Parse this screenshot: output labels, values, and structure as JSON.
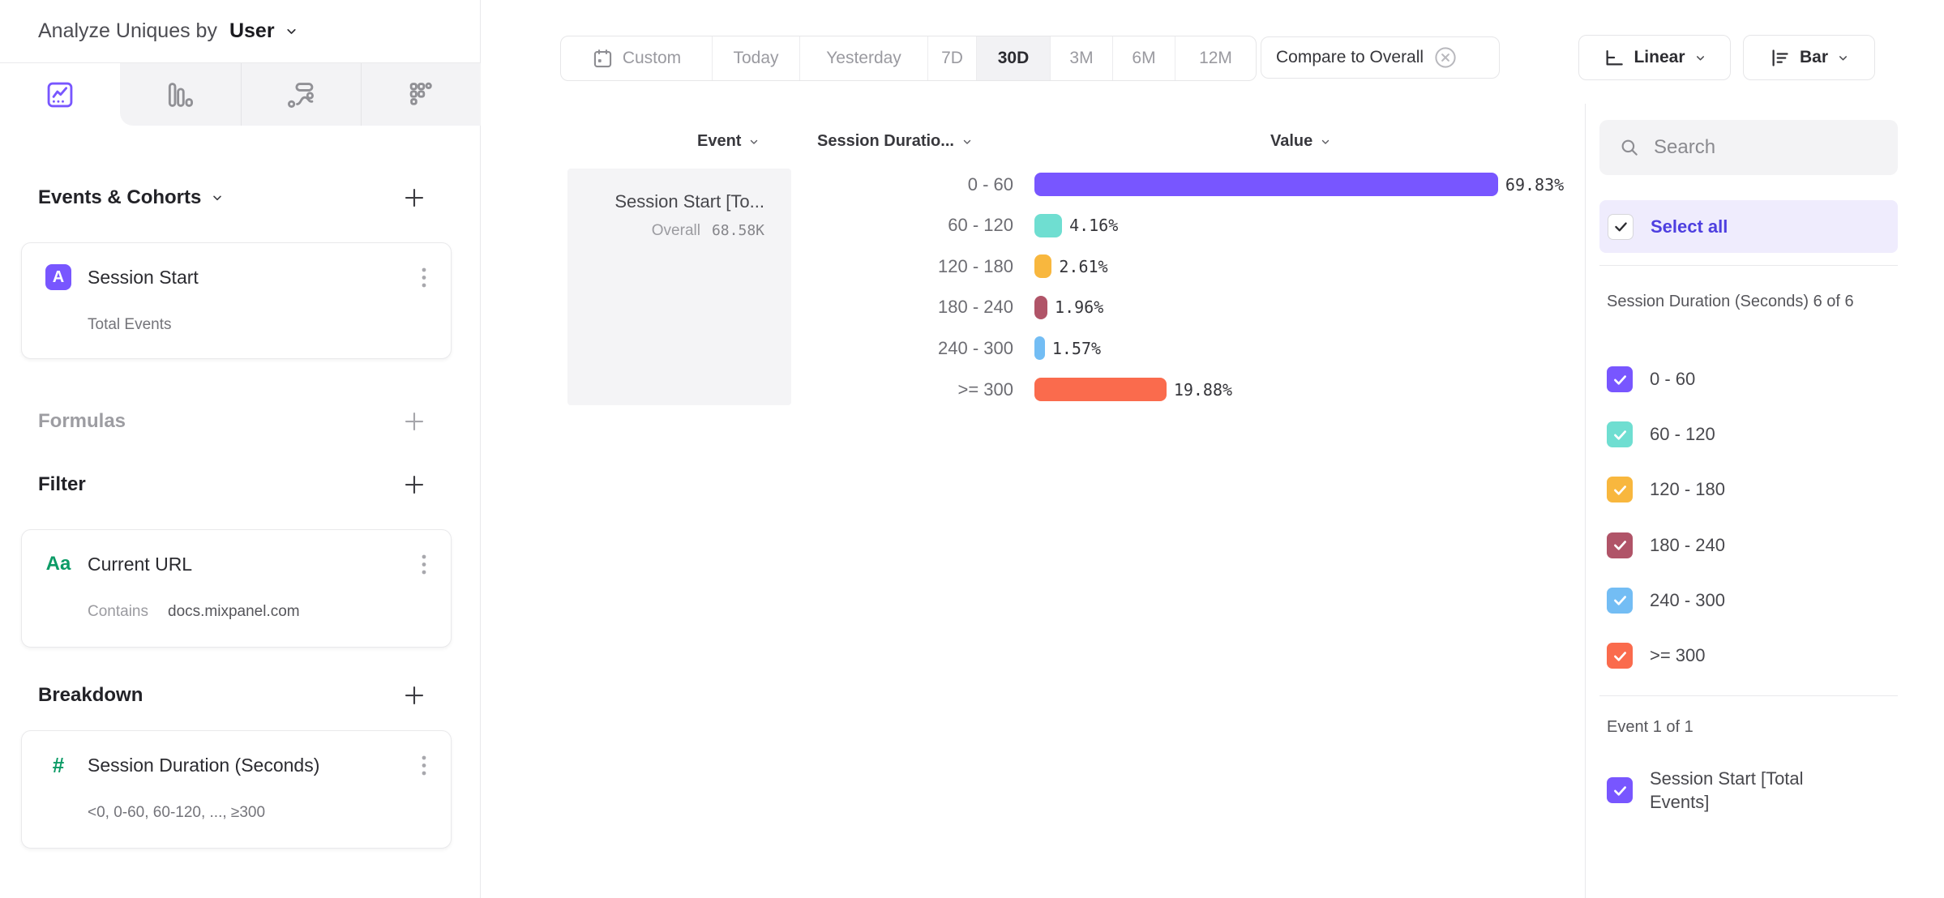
{
  "app": {
    "analyze_label": "Analyze Uniques by",
    "analyze_value": "User"
  },
  "sidebar": {
    "tabs": [
      {
        "icon": "insights-chart-icon",
        "active": true
      },
      {
        "icon": "funnels-bars-icon",
        "active": false
      },
      {
        "icon": "flows-icon",
        "active": false
      },
      {
        "icon": "retention-grid-icon",
        "active": false
      }
    ],
    "events_section": {
      "label": "Events & Cohorts"
    },
    "event_card": {
      "badge": "A",
      "title": "Session Start",
      "subtitle": "Total Events"
    },
    "formulas_section": {
      "label": "Formulas"
    },
    "filter_section": {
      "label": "Filter"
    },
    "filter_card": {
      "icon": "Aa",
      "title": "Current URL",
      "operator": "Contains",
      "value": "docs.mixpanel.com"
    },
    "breakdown_section": {
      "label": "Breakdown"
    },
    "breakdown_card": {
      "icon": "#",
      "title": "Session Duration (Seconds)",
      "subtitle": "<0, 0-60, 60-120, ..., ≥300"
    }
  },
  "toolbar": {
    "date_ranges": [
      "Custom",
      "Today",
      "Yesterday",
      "7D",
      "30D",
      "3M",
      "6M",
      "12M"
    ],
    "selected_range": "30D",
    "compare_label": "Compare to Overall",
    "scale_label": "Linear",
    "chart_type_label": "Bar"
  },
  "chart": {
    "event_header": "Event",
    "breakdown_header": "Session Duratio...",
    "value_header": "Value",
    "event_cell": {
      "title": "Session Start [To...",
      "overall_label": "Overall",
      "overall_value": "68.58K"
    }
  },
  "chart_data": {
    "type": "bar",
    "orientation": "horizontal",
    "title": "Session Start [Total Events] by Session Duration (Seconds)",
    "categories": [
      "0 - 60",
      "60 - 120",
      "120 - 180",
      "180 - 240",
      "240 - 300",
      ">= 300"
    ],
    "values": [
      69.83,
      4.16,
      2.61,
      1.96,
      1.57,
      19.88
    ],
    "unit": "%",
    "colors": [
      "#7856FF",
      "#6FDED1",
      "#F8B73E",
      "#B05468",
      "#73BDF4",
      "#FA6B4D"
    ],
    "series": [
      {
        "name": "Session Start [Total Events]",
        "overall_value": "68.58K"
      }
    ],
    "xlim": [
      0,
      100
    ],
    "grid": false,
    "legend_position": "right"
  },
  "legend": {
    "search_placeholder": "Search",
    "select_all_label": "Select all",
    "group_heading": "Session Duration (Seconds) 6 of 6",
    "event_heading": "Event 1 of 1",
    "event_items": [
      {
        "label": "Session Start [Total Events]",
        "color": "#7856FF",
        "checked": true
      }
    ]
  },
  "colors": {
    "accent_purple": "#7856FF",
    "select_all_text": "#4e3fe0",
    "property_green": "#0c9b66"
  }
}
